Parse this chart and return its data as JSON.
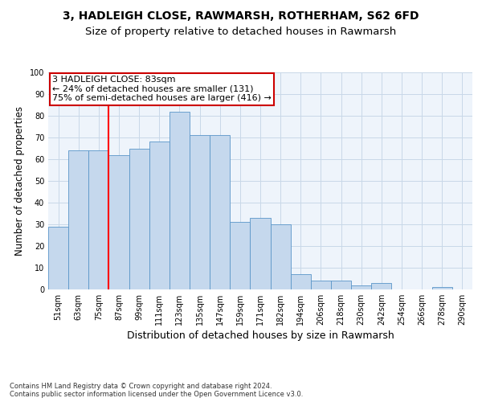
{
  "title": "3, HADLEIGH CLOSE, RAWMARSH, ROTHERHAM, S62 6FD",
  "subtitle": "Size of property relative to detached houses in Rawmarsh",
  "xlabel": "Distribution of detached houses by size in Rawmarsh",
  "ylabel": "Number of detached properties",
  "footer_line1": "Contains HM Land Registry data © Crown copyright and database right 2024.",
  "footer_line2": "Contains public sector information licensed under the Open Government Licence v3.0.",
  "bin_labels": [
    "51sqm",
    "63sqm",
    "75sqm",
    "87sqm",
    "99sqm",
    "111sqm",
    "123sqm",
    "135sqm",
    "147sqm",
    "159sqm",
    "171sqm",
    "182sqm",
    "194sqm",
    "206sqm",
    "218sqm",
    "230sqm",
    "242sqm",
    "254sqm",
    "266sqm",
    "278sqm",
    "290sqm"
  ],
  "bar_values": [
    29,
    64,
    64,
    62,
    65,
    68,
    82,
    71,
    71,
    31,
    33,
    30,
    7,
    4,
    4,
    2,
    3,
    0,
    0,
    1,
    0
  ],
  "bar_color": "#c5d8ed",
  "bar_edge_color": "#5a96c8",
  "grid_color": "#c8d8e8",
  "background_color": "#eef4fb",
  "vline_bin_index": 2.5,
  "annotation_text": "3 HADLEIGH CLOSE: 83sqm\n← 24% of detached houses are smaller (131)\n75% of semi-detached houses are larger (416) →",
  "annotation_box_color": "#cc0000",
  "ylim": [
    0,
    100
  ],
  "yticks": [
    0,
    10,
    20,
    30,
    40,
    50,
    60,
    70,
    80,
    90,
    100
  ],
  "title_fontsize": 10,
  "subtitle_fontsize": 9.5,
  "xlabel_fontsize": 9,
  "ylabel_fontsize": 8.5,
  "tick_fontsize": 7,
  "annotation_fontsize": 8,
  "footer_fontsize": 6
}
